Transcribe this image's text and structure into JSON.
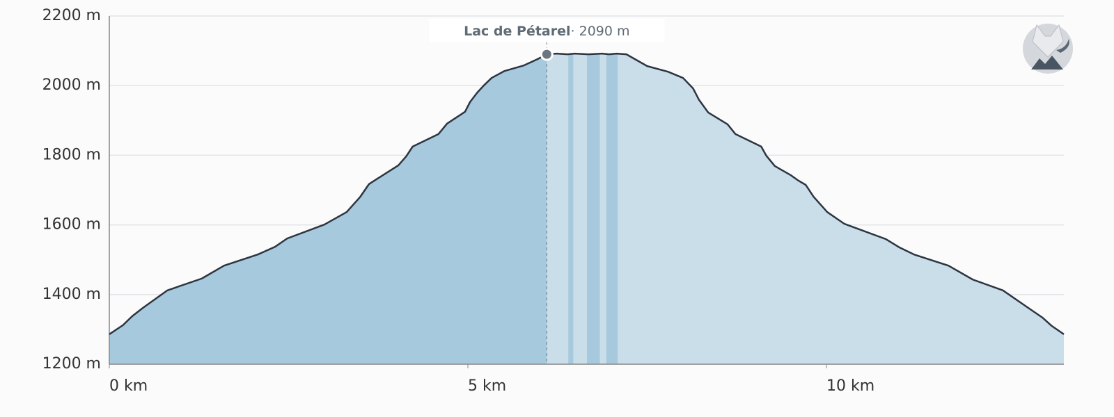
{
  "chart_data": {
    "type": "area",
    "x": [
      0,
      0.19,
      0.32,
      0.47,
      0.81,
      1.29,
      1.6,
      2.07,
      2.31,
      2.48,
      3.0,
      3.31,
      3.5,
      3.62,
      3.74,
      4.03,
      4.14,
      4.23,
      4.59,
      4.71,
      4.96,
      5.03,
      5.13,
      5.22,
      5.33,
      5.51,
      5.78,
      5.97,
      6.1,
      6.24,
      6.39,
      6.49,
      6.68,
      6.87,
      6.97,
      7.07,
      7.21,
      7.5,
      7.79,
      8.0,
      8.14,
      8.22,
      8.35,
      8.62,
      8.73,
      9.09,
      9.16,
      9.28,
      9.5,
      9.61,
      9.71,
      9.82,
      10.01,
      10.25,
      10.83,
      11.02,
      11.22,
      11.7,
      12.04,
      12.46,
      12.84,
      13.01,
      13.14,
      13.31
    ],
    "series": [
      {
        "color": "#2d3540",
        "values": [
          1286,
          1312,
          1338,
          1362,
          1412,
          1446,
          1483,
          1515,
          1537,
          1561,
          1601,
          1637,
          1681,
          1717,
          1733,
          1771,
          1797,
          1825,
          1861,
          1891,
          1925,
          1953,
          1980,
          2000,
          2022,
          2042,
          2058,
          2076,
          2090,
          2092,
          2090,
          2092,
          2090,
          2092,
          2090,
          2092,
          2090,
          2056,
          2040,
          2022,
          1992,
          1960,
          1923,
          1889,
          1861,
          1825,
          1799,
          1769,
          1743,
          1727,
          1715,
          1681,
          1637,
          1603,
          1559,
          1535,
          1515,
          1483,
          1443,
          1412,
          1358,
          1334,
          1310,
          1286
        ]
      }
    ],
    "fill_before": "#a6c9dd",
    "fill_after": "#cadeea",
    "highlight_ranges": [
      [
        6.4,
        6.47
      ],
      [
        6.66,
        6.84
      ],
      [
        6.93,
        7.09
      ]
    ],
    "annotation": {
      "text": "Lac de Pétarel",
      "value_text": "· 2090 m",
      "x": 6.1,
      "y": 2090
    },
    "xlim": [
      0,
      13.31
    ],
    "xticks": [
      {
        "value": 0,
        "label": "0 km"
      },
      {
        "value": 5,
        "label": "5 km"
      },
      {
        "value": 10,
        "label": "10 km"
      }
    ],
    "ylim": [
      1200,
      2200
    ],
    "yticks": [
      {
        "value": 1200,
        "label": "1200 m"
      },
      {
        "value": 1400,
        "label": "1400 m"
      },
      {
        "value": 1600,
        "label": "1600 m"
      },
      {
        "value": 1800,
        "label": "1800 m"
      },
      {
        "value": 2000,
        "label": "2000 m"
      },
      {
        "value": 2200,
        "label": "2200 m"
      }
    ],
    "grid": true
  }
}
